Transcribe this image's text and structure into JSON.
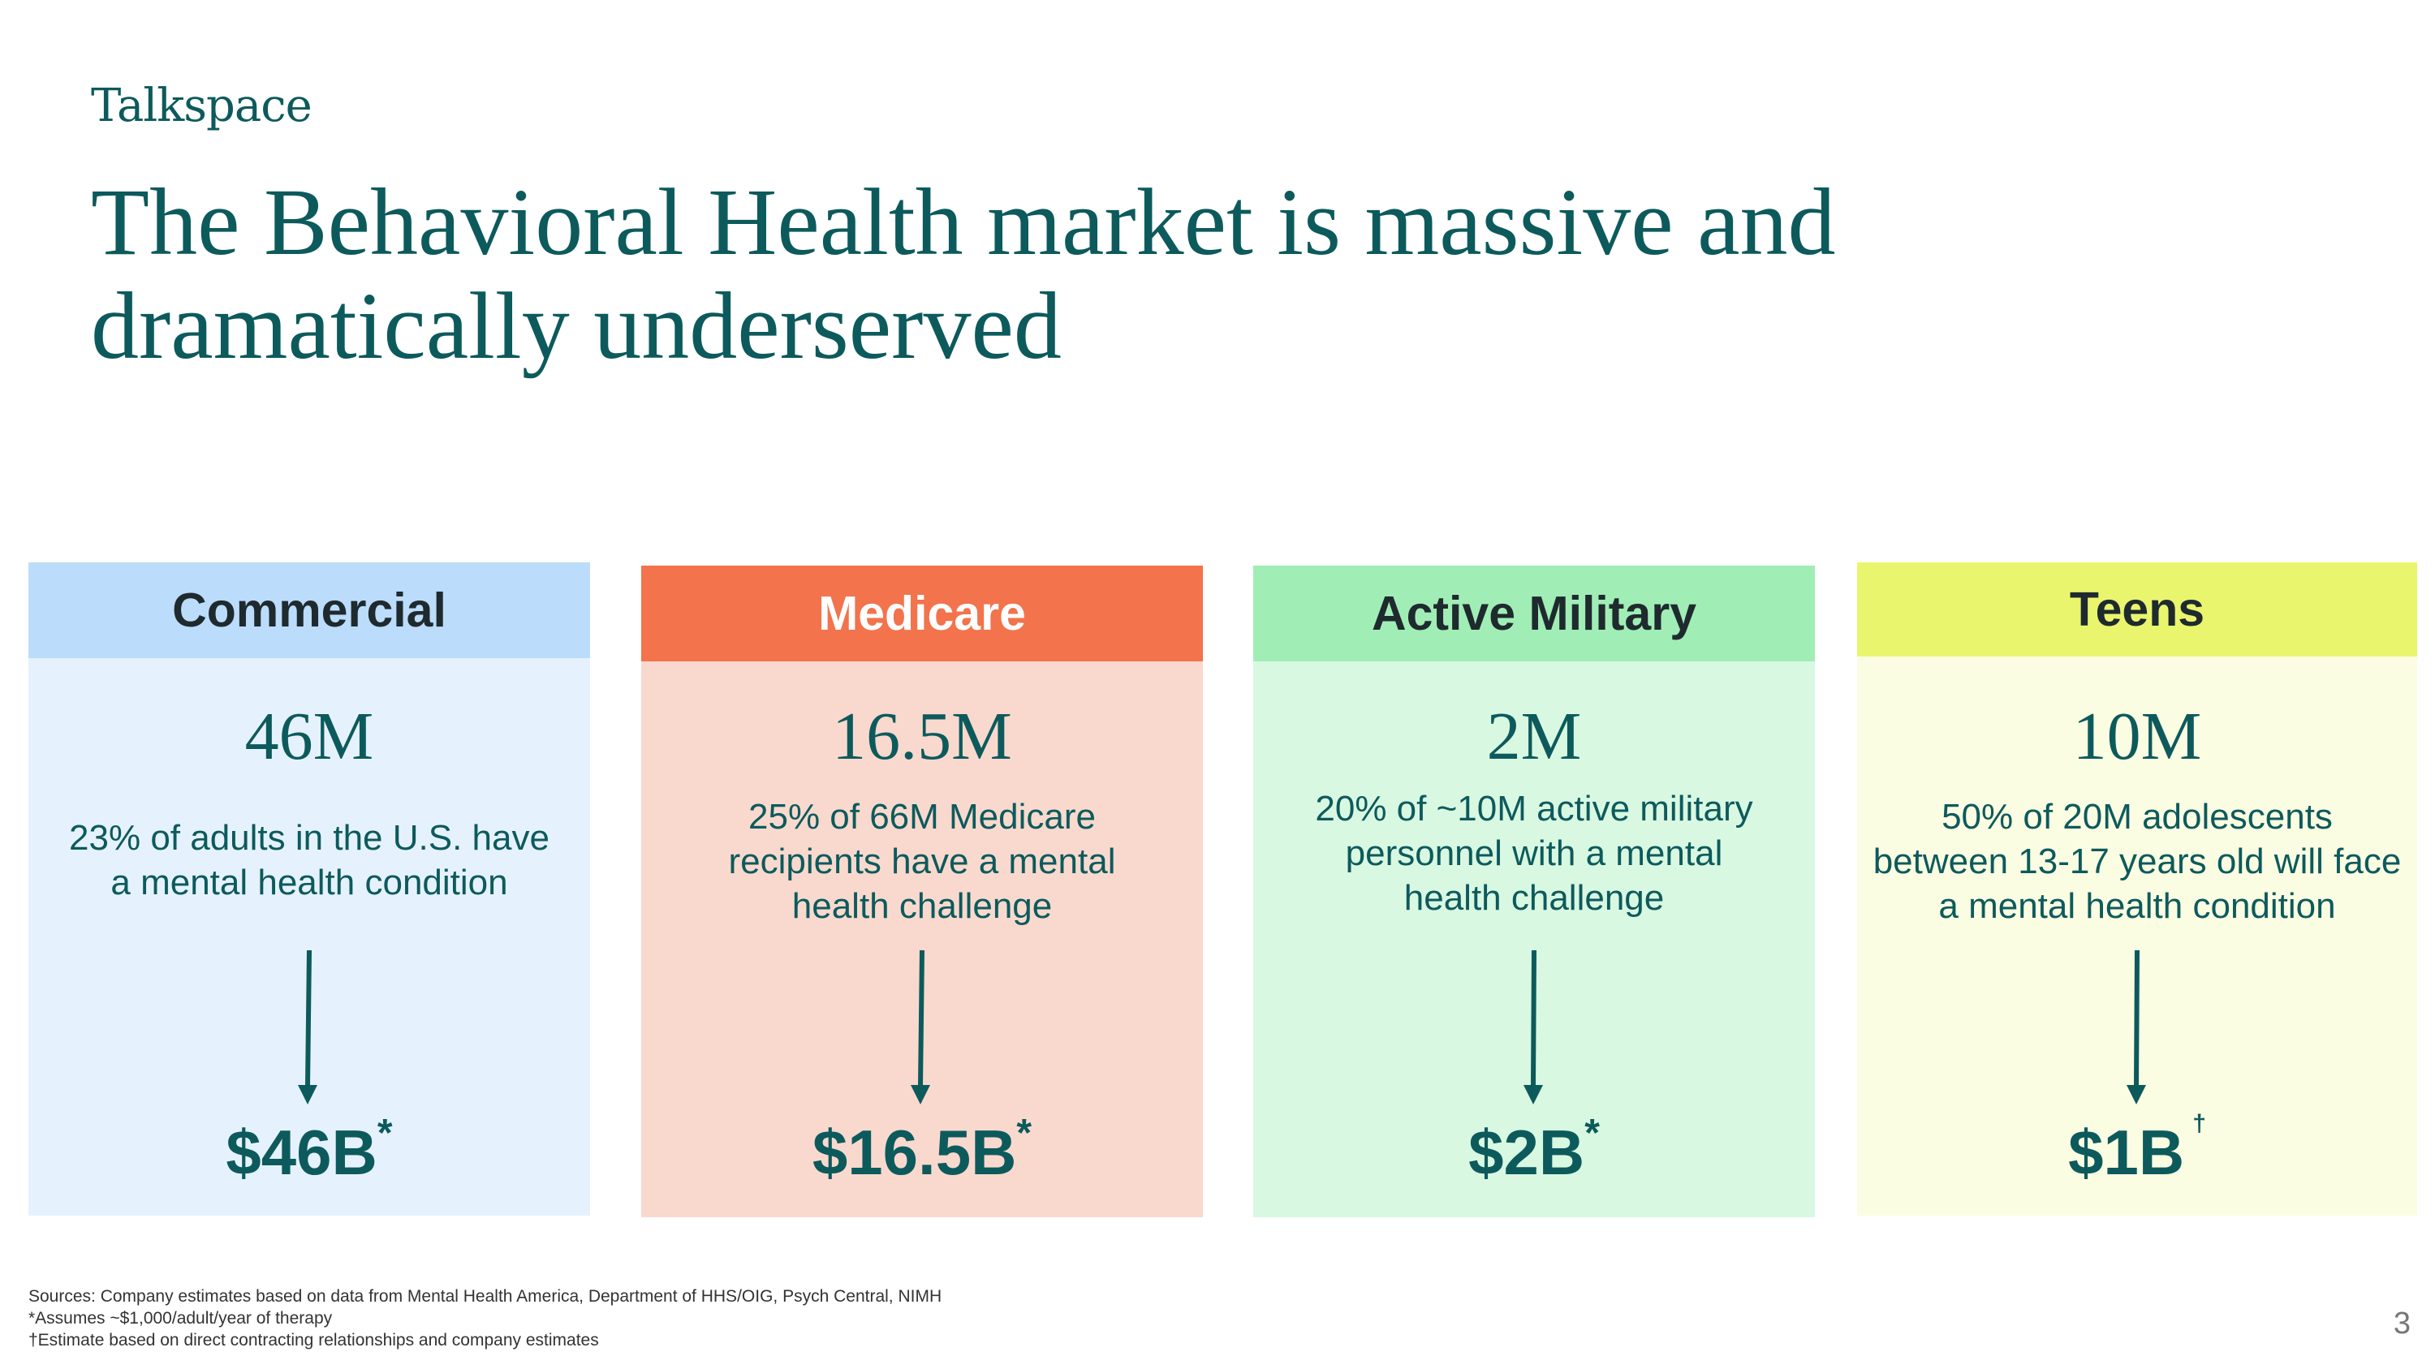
{
  "brand": {
    "logo_text": "Talkspace"
  },
  "slide": {
    "title_line1": "The Behavioral Health market is massive and",
    "title_line2": "dramatically underserved",
    "page_number": "3"
  },
  "cards": [
    {
      "header": "Commercial",
      "big_number": "46M",
      "desc_line1": "23% of adults in the U.S. have",
      "desc_line2": "a mental health condition",
      "desc_line3": "",
      "value": "$46B",
      "value_mark": "*",
      "header_bg": "#bcdcfb",
      "header_color": "#1e2a2e",
      "body_bg": "#e5f2fe"
    },
    {
      "header": "Medicare",
      "big_number": "16.5M",
      "desc_line1": "25% of 66M Medicare",
      "desc_line2": "recipients have a mental",
      "desc_line3": "health challenge",
      "value": "$16.5B",
      "value_mark": "*",
      "header_bg": "#f2734c",
      "header_color": "#ffffff",
      "body_bg": "#f9d9ce"
    },
    {
      "header": "Active Military",
      "big_number": "2M",
      "desc_line1": "20% of ~10M active military",
      "desc_line2": "personnel with a mental",
      "desc_line3": "health challenge",
      "value": "$2B",
      "value_mark": "*",
      "header_bg": "#a1edb6",
      "header_color": "#1e2a2e",
      "body_bg": "#d9f8e2"
    },
    {
      "header": "Teens",
      "big_number": "10M",
      "desc_line1": "50% of 20M adolescents",
      "desc_line2": "between 13-17 years old will face",
      "desc_line3": "a mental health condition",
      "value": "$1B",
      "value_mark": "†",
      "header_bg": "#eaf56e",
      "header_color": "#1e2a2e",
      "body_bg": "#fbfde2"
    }
  ],
  "footnotes": {
    "sources": "Sources: Company estimates based on data from Mental Health America, Department of HHS/OIG, Psych Central,  NIMH",
    "note1": "*Assumes ~$1,000/adult/year of therapy",
    "note2": "†Estimate based on direct contracting relationships and company estimates"
  },
  "colors": {
    "primary": "#0d5a5c"
  }
}
